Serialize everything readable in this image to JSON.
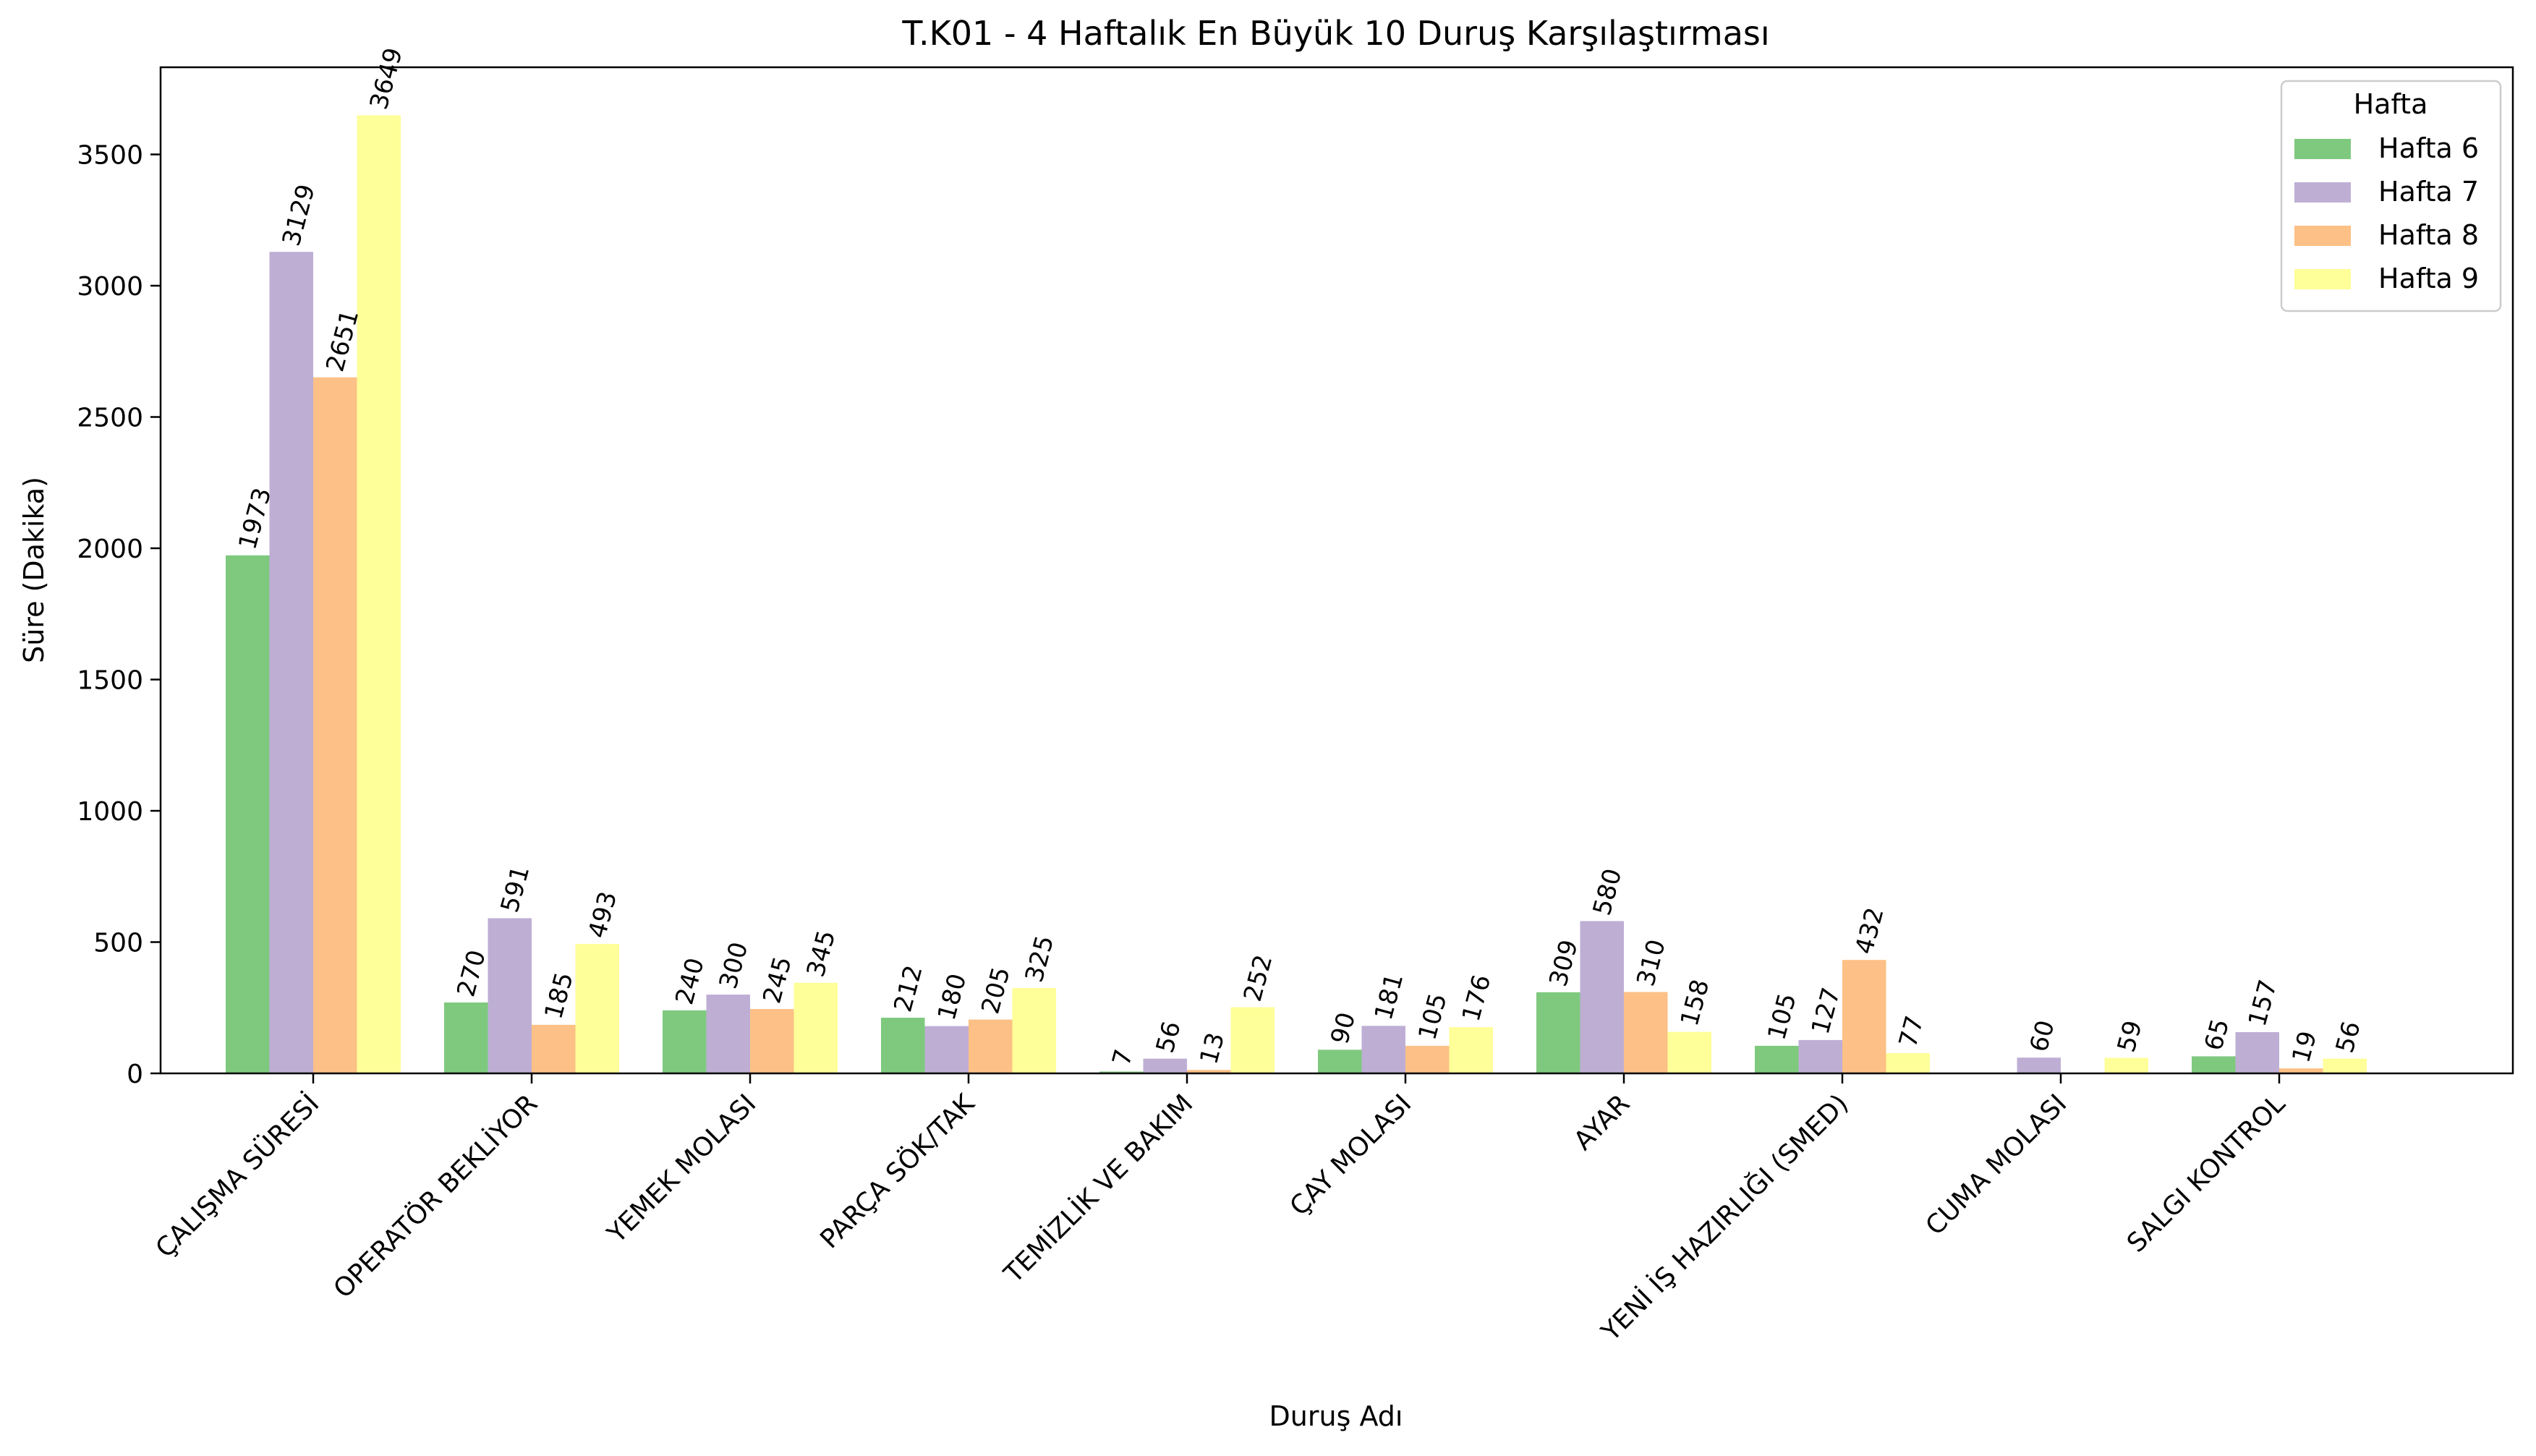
{
  "chart_data": {
    "type": "bar",
    "title": "T.K01 - 4 Haftalık En Büyük 10 Duruş Karşılaştırması",
    "xlabel": "Duruş Adı",
    "ylabel": "Süre (Dakika)",
    "ylim": [
      0,
      3832
    ],
    "yticks": [
      "0",
      "500",
      "1000",
      "1500",
      "2000",
      "2500",
      "3000",
      "3500"
    ],
    "grid": false,
    "legend_title": "Hafta",
    "legend_position": "top-right",
    "categories": [
      "ÇALIŞMA SÜRESİ",
      "OPERATÖR BEKLİYOR",
      "YEMEK MOLASI",
      "PARÇA SÖK/TAK",
      "TEMİZLİK VE BAKIM",
      "ÇAY MOLASI",
      "AYAR",
      "YENİ İŞ HAZIRLIĞI (SMED)",
      "CUMA  MOLASI",
      "SALGI KONTROL"
    ],
    "series": [
      {
        "name": "Hafta 6",
        "color": "#7fc97f",
        "values": [
          1973,
          270,
          240,
          212,
          7,
          90,
          309,
          105,
          null,
          65
        ]
      },
      {
        "name": "Hafta 7",
        "color": "#beaed4",
        "values": [
          3129,
          591,
          300,
          180,
          56,
          181,
          580,
          127,
          60,
          157
        ]
      },
      {
        "name": "Hafta 8",
        "color": "#fdc086",
        "values": [
          2651,
          185,
          245,
          205,
          13,
          105,
          310,
          432,
          null,
          19
        ]
      },
      {
        "name": "Hafta 9",
        "color": "#ffff99",
        "values": [
          3649,
          493,
          345,
          325,
          252,
          176,
          158,
          77,
          59,
          56
        ]
      }
    ]
  }
}
